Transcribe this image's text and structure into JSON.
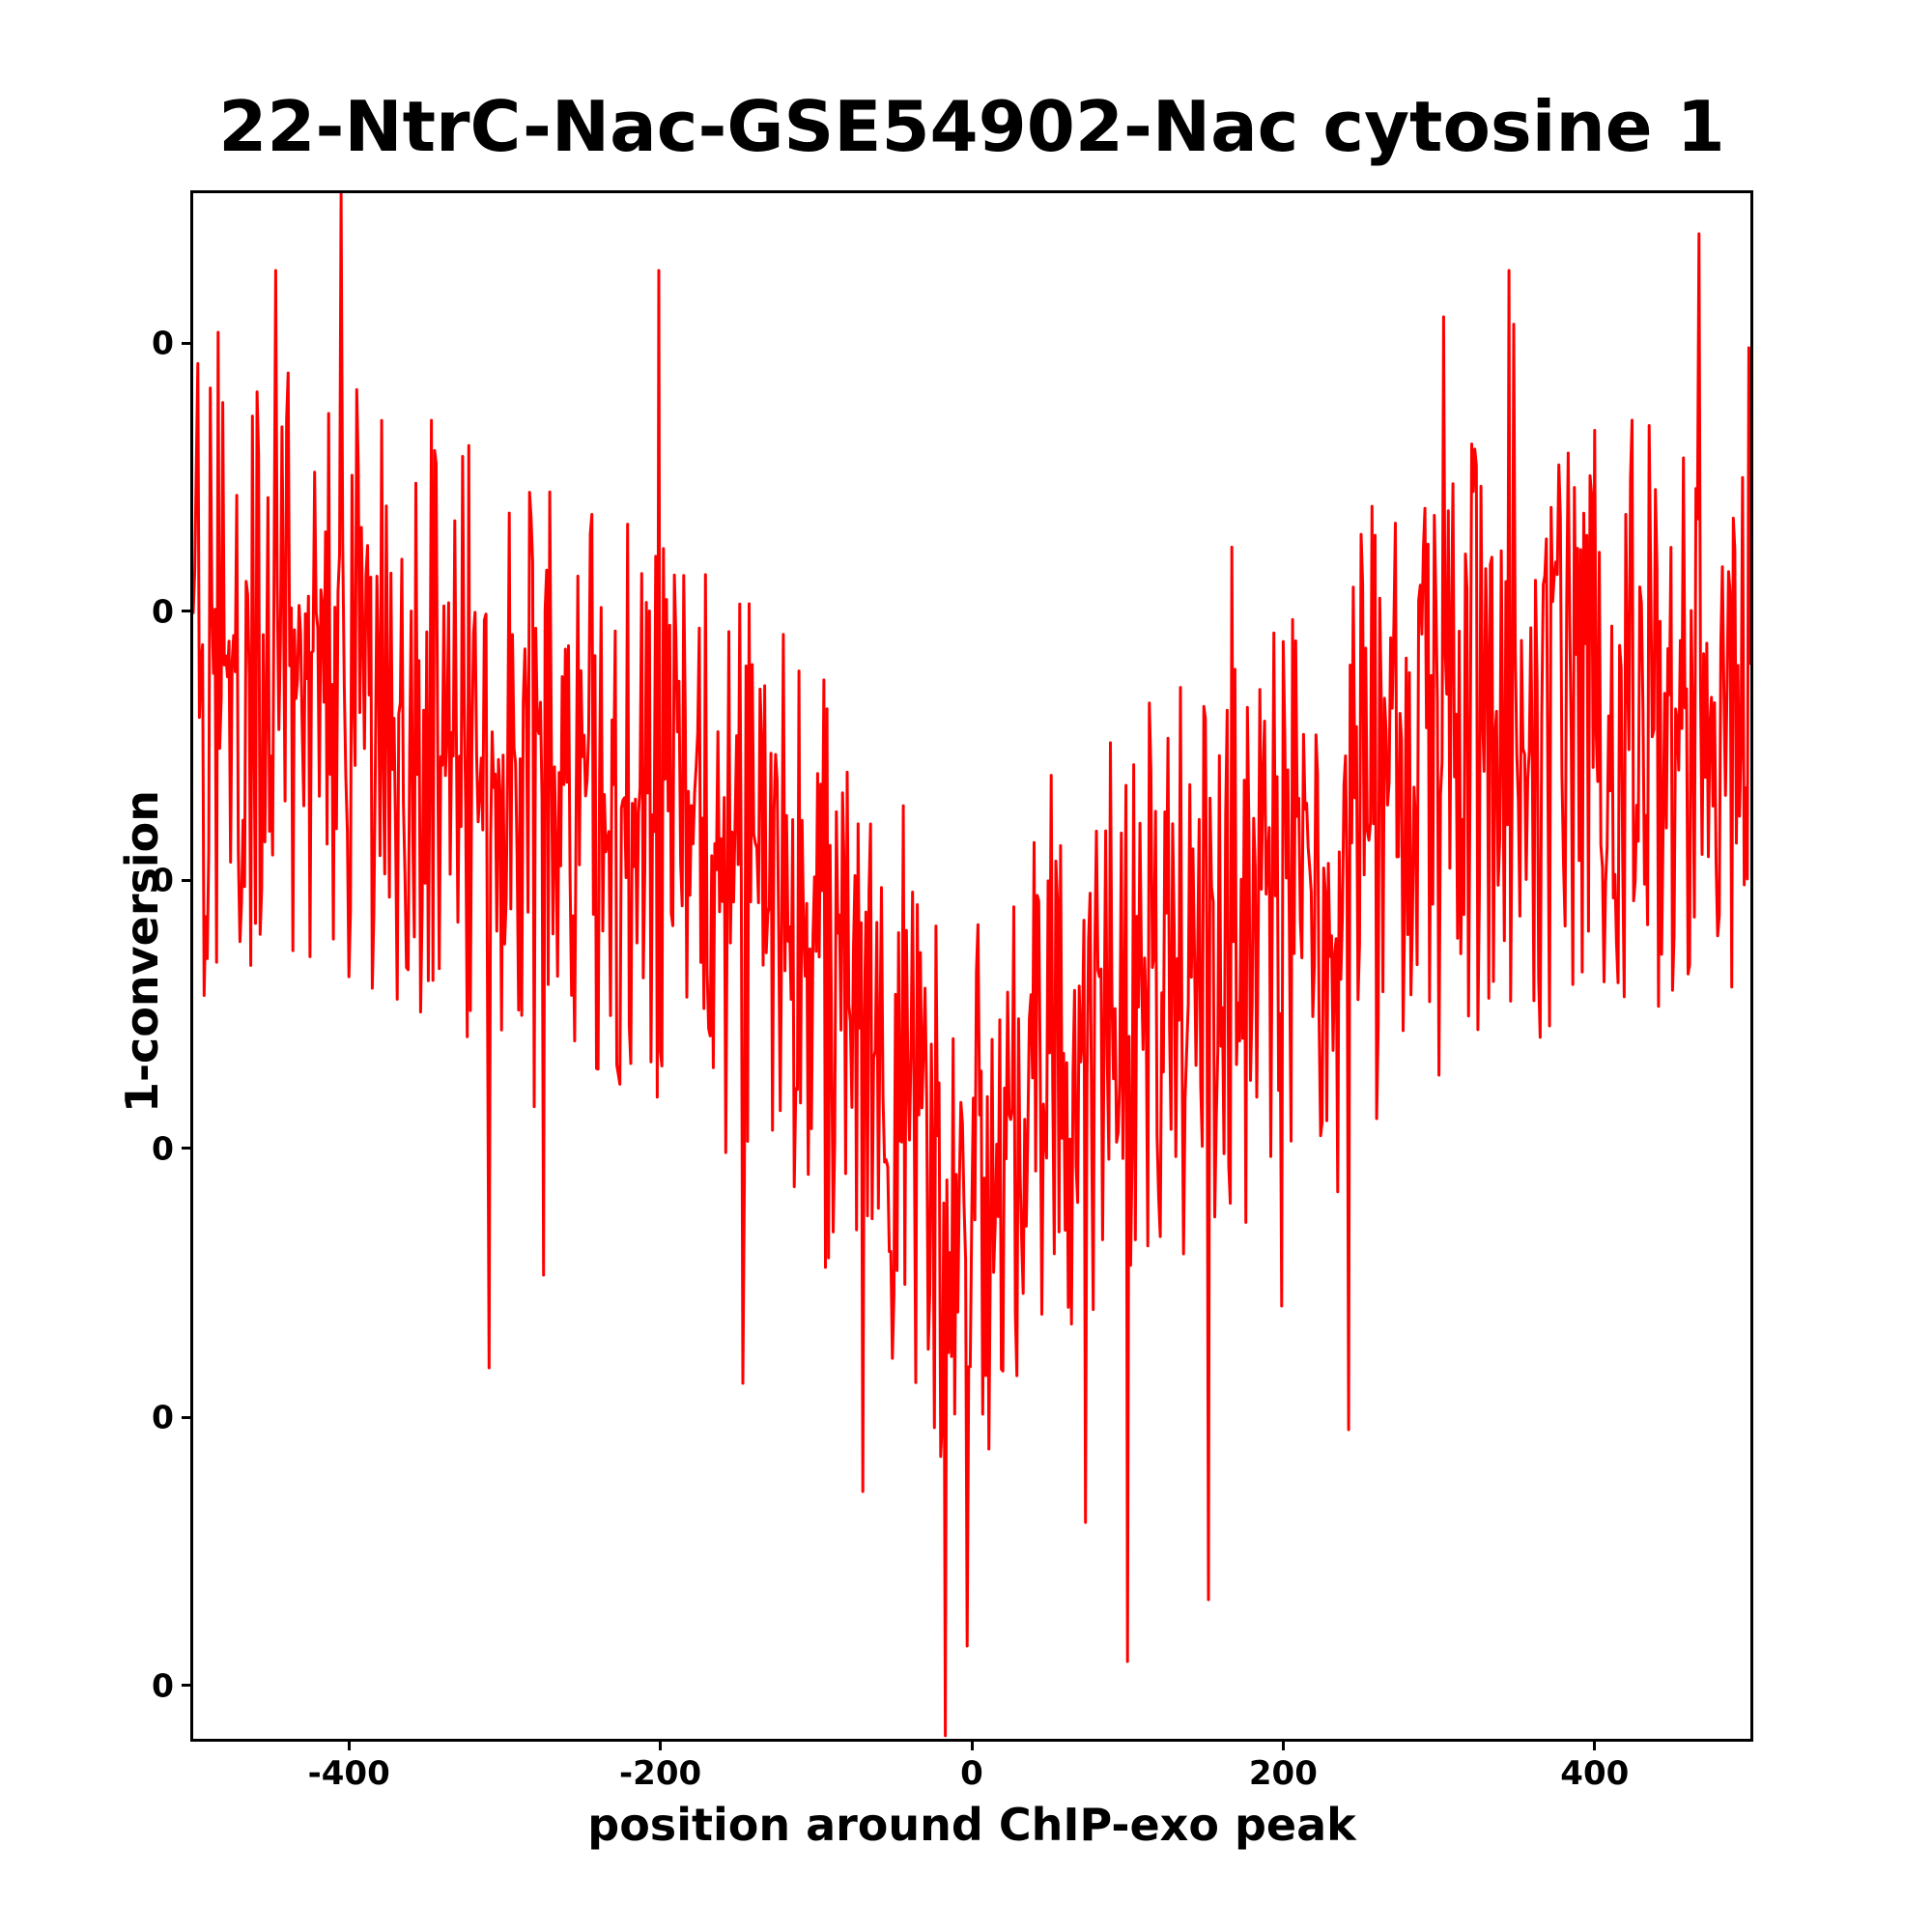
{
  "title": "22-NtrC-Nac-GSE54902-Nac cytosine 1",
  "axes": {
    "xlabel": "position around ChIP-exo peak",
    "ylabel": "1-conversion"
  },
  "chart_data": {
    "type": "line",
    "title": "22-NtrC-Nac-GSE54902-Nac cytosine 1",
    "xlabel": "position around ChIP-exo peak",
    "ylabel": "1-conversion",
    "grid": false,
    "legend": "none",
    "line_color": "#ff0000",
    "line_width": 3,
    "background": "#ffffff",
    "x_range": [
      -500,
      500
    ],
    "n_points": 1001,
    "x_ticks": [
      {
        "value": -400,
        "label": "-400"
      },
      {
        "value": -200,
        "label": "-200"
      },
      {
        "value": 0,
        "label": "0"
      },
      {
        "value": 200,
        "label": "200"
      },
      {
        "value": 400,
        "label": "400"
      }
    ],
    "y_ticks": [
      {
        "frac_from_top": 0.0969,
        "label": "0"
      },
      {
        "frac_from_top": 0.2706,
        "label": "0"
      },
      {
        "frac_from_top": 0.4444,
        "label": "0"
      },
      {
        "frac_from_top": 0.6181,
        "label": "0"
      },
      {
        "frac_from_top": 0.7919,
        "label": "0"
      },
      {
        "frac_from_top": 0.9656,
        "label": "0"
      }
    ],
    "y_units_note": "y tick labels all render as 0; values below are normalized plot-height fractions (0 = bottom frame, 1 = top frame)",
    "series": [
      {
        "name": "1-conversion",
        "shape": "noisy V-dip centered near x = -20, clipped at axes frame",
        "trend_anchors": [
          [
            -500,
            0.7,
            0.13
          ],
          [
            -450,
            0.69,
            0.135
          ],
          [
            -400,
            0.68,
            0.13
          ],
          [
            -350,
            0.66,
            0.13
          ],
          [
            -300,
            0.635,
            0.13
          ],
          [
            -250,
            0.615,
            0.125
          ],
          [
            -200,
            0.595,
            0.125
          ],
          [
            -150,
            0.55,
            0.13
          ],
          [
            -100,
            0.5,
            0.13
          ],
          [
            -50,
            0.43,
            0.13
          ],
          [
            -25,
            0.38,
            0.13
          ],
          [
            0,
            0.36,
            0.13
          ],
          [
            30,
            0.4,
            0.13
          ],
          [
            60,
            0.43,
            0.13
          ],
          [
            100,
            0.46,
            0.135
          ],
          [
            150,
            0.5,
            0.13
          ],
          [
            200,
            0.545,
            0.13
          ],
          [
            250,
            0.585,
            0.13
          ],
          [
            300,
            0.625,
            0.135
          ],
          [
            350,
            0.655,
            0.135
          ],
          [
            400,
            0.66,
            0.13
          ],
          [
            450,
            0.67,
            0.13
          ],
          [
            500,
            0.68,
            0.13
          ]
        ],
        "spikes": [
          [
            -484,
            0.91
          ],
          [
            -447,
            0.95
          ],
          [
            -405,
            1.0
          ],
          [
            -310,
            0.24
          ],
          [
            -275,
            0.3
          ],
          [
            -201,
            0.95
          ],
          [
            -147,
            0.23
          ],
          [
            -70,
            0.16
          ],
          [
            -17,
            0.002
          ],
          [
            -3,
            0.06
          ],
          [
            73,
            0.14
          ],
          [
            100,
            0.05
          ],
          [
            152,
            0.09
          ],
          [
            199,
            0.28
          ],
          [
            242,
            0.2
          ],
          [
            303,
            0.92
          ],
          [
            345,
            0.95
          ],
          [
            499,
            0.9
          ]
        ],
        "noise": {
          "seed": 90817,
          "shape_pow": 1.4,
          "amp_scale": 1.5,
          "tail_prob": 0.035,
          "tail_scale": 1.4
        }
      }
    ]
  }
}
